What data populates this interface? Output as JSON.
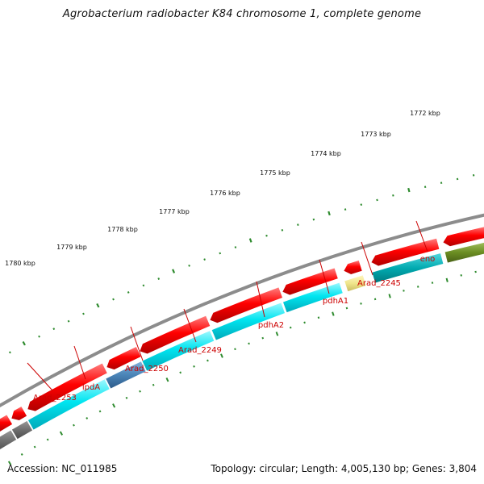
{
  "title": "Agrobacterium radiobacter K84 chromosome 1, complete genome",
  "footer": {
    "accession": "Accession: NC_011985",
    "summary": "Topology: circular; Length: 4,005,130 bp; Genes: 3,804"
  },
  "colors": {
    "backbone": "#8c8c8c",
    "cds_forward": "#ff0000",
    "cds_reverse": "#00e5f0",
    "cds_reverse_alt": "#4a84b8",
    "gray_feature": "#6e6e6e",
    "pale_feature": "#f0e68c",
    "teal_feature": "#00aab0",
    "olive_feature": "#6b8e23",
    "tick": "#2e8b2e",
    "label": "#cc0000"
  },
  "scale_ticks": [
    "1772 kbp",
    "1773 kbp",
    "1774 kbp",
    "1775 kbp",
    "1776 kbp",
    "1777 kbp",
    "1778 kbp",
    "1779 kbp",
    "1780 kbp"
  ],
  "genes": [
    "eno",
    "Arad_2245",
    "pdhA1",
    "pdhA2",
    "Arad_2249",
    "Arad_2250",
    "lpdA",
    "Arad_2253"
  ]
}
